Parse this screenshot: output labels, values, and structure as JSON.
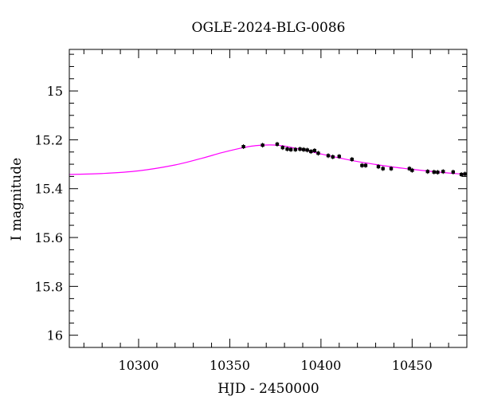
{
  "chart_data": {
    "type": "scatter",
    "title": "OGLE-2024-BLG-0086",
    "xlabel": "HJD - 2450000",
    "ylabel": "I magnitude",
    "xlim": [
      10262,
      10480
    ],
    "ylim": [
      16.05,
      14.83
    ],
    "y_inverted": true,
    "xticks": [
      10300,
      10350,
      10400,
      10450
    ],
    "yticks": [
      15,
      15.2,
      15.4,
      15.6,
      15.8,
      16
    ],
    "ytick_labels": [
      "15",
      "15.2",
      "15.4",
      "15.6",
      "15.8",
      "16"
    ],
    "xtick_labels": [
      "10300",
      "10350",
      "10400",
      "10450"
    ],
    "colors": {
      "model": "#ff00ff",
      "points": "#000000"
    },
    "model_curve": {
      "name": "model",
      "x": [
        10262,
        10280,
        10300,
        10320,
        10335,
        10345,
        10355,
        10362,
        10368,
        10372,
        10376,
        10380,
        10385,
        10390,
        10395,
        10400,
        10410,
        10420,
        10430,
        10440,
        10450,
        10460,
        10470,
        10480
      ],
      "y": [
        15.342,
        15.338,
        15.327,
        15.303,
        15.275,
        15.254,
        15.236,
        15.226,
        15.222,
        15.221,
        15.222,
        15.226,
        15.233,
        15.241,
        15.249,
        15.258,
        15.274,
        15.289,
        15.301,
        15.312,
        15.321,
        15.329,
        15.336,
        15.342
      ]
    },
    "observations": {
      "name": "data",
      "x": [
        10357.5,
        10368,
        10376,
        10379,
        10381.5,
        10383.5,
        10386,
        10388.5,
        10390.5,
        10392.5,
        10394.5,
        10396.5,
        10398.5,
        10404,
        10406.5,
        10410,
        10417,
        10422.5,
        10424.5,
        10431.5,
        10434,
        10438.5,
        10448.5,
        10450,
        10458.5,
        10462,
        10464,
        10467,
        10472.5,
        10477,
        10479
      ],
      "y": [
        15.228,
        15.222,
        15.218,
        15.232,
        15.238,
        15.24,
        15.24,
        15.238,
        15.24,
        15.242,
        15.248,
        15.244,
        15.255,
        15.265,
        15.27,
        15.268,
        15.28,
        15.305,
        15.305,
        15.31,
        15.318,
        15.318,
        15.318,
        15.325,
        15.33,
        15.332,
        15.333,
        15.33,
        15.332,
        15.342,
        15.34
      ]
    }
  }
}
